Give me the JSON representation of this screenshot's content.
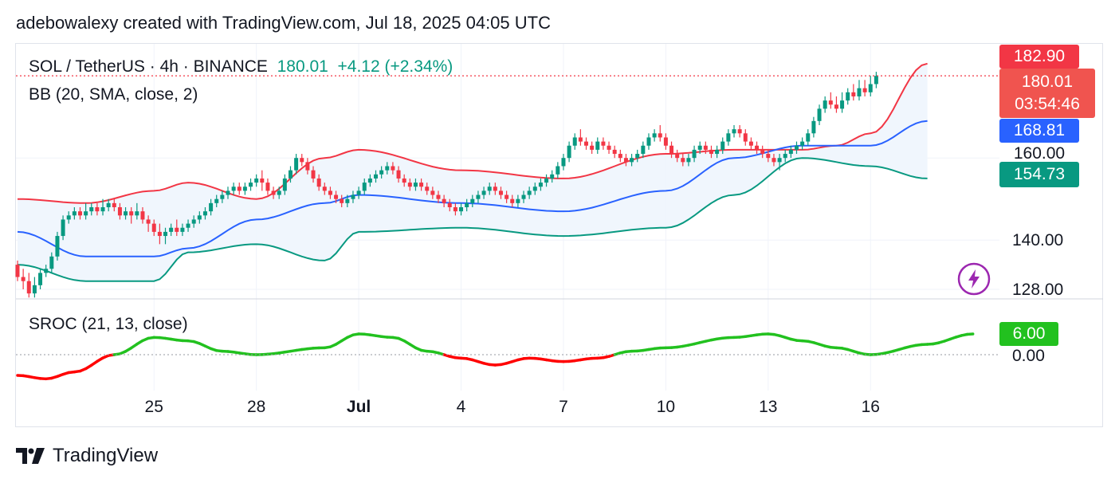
{
  "caption": "adebowalexy created with TradingView.com, Jul 18, 2025 04:05 UTC",
  "legend": {
    "symbol": "SOL / TetherUS · 4h · BINANCE",
    "last": "180.01",
    "change": "+4.12 (+2.34%)",
    "bb": "BB (20, SMA, close, 2)",
    "sroc": "SROC (21, 13, close)"
  },
  "price_tags": {
    "upper": "182.90",
    "last": "180.01",
    "countdown": "03:54:46",
    "basis": "168.81",
    "level": "160.00",
    "lower": "154.73",
    "sroc": "6.00"
  },
  "footer_brand": "TradingView",
  "icon": "lightning-icon",
  "colors": {
    "up": "#089981",
    "down": "#f23645",
    "basis": "#2962ff",
    "upper": "#f23645",
    "lower": "#089981",
    "band_fill": "#eef5fd",
    "sroc_pos": "#22c11f",
    "sroc_neg": "#ff0000"
  },
  "chart_data": {
    "type": "candlestick",
    "price_axis": {
      "ticks": [
        128,
        140,
        160
      ],
      "range": [
        126,
        184
      ]
    },
    "sroc_axis": {
      "ticks": [
        0
      ],
      "range": [
        -8,
        14
      ]
    },
    "x_labels": [
      "25",
      "28",
      "Jul",
      "4",
      "7",
      "10",
      "13",
      "16"
    ],
    "x_label_index": [
      24,
      42,
      60,
      78,
      96,
      114,
      132,
      150
    ],
    "basis": [
      [
        0,
        142
      ],
      [
        12,
        136
      ],
      [
        24,
        136
      ],
      [
        30,
        138
      ],
      [
        42,
        145
      ],
      [
        54,
        149
      ],
      [
        60,
        151
      ],
      [
        78,
        149
      ],
      [
        96,
        147
      ],
      [
        114,
        152
      ],
      [
        126,
        160
      ],
      [
        138,
        163
      ],
      [
        150,
        163
      ],
      [
        160,
        169
      ]
    ],
    "upper": [
      [
        0,
        150
      ],
      [
        12,
        149
      ],
      [
        24,
        152
      ],
      [
        30,
        154
      ],
      [
        42,
        150
      ],
      [
        54,
        160
      ],
      [
        60,
        162
      ],
      [
        78,
        157
      ],
      [
        96,
        155
      ],
      [
        114,
        161
      ],
      [
        126,
        162
      ],
      [
        138,
        162
      ],
      [
        144,
        163
      ],
      [
        150,
        166
      ],
      [
        160,
        183
      ]
    ],
    "lower": [
      [
        0,
        134
      ],
      [
        12,
        130
      ],
      [
        24,
        130
      ],
      [
        30,
        137
      ],
      [
        42,
        139
      ],
      [
        54,
        135
      ],
      [
        60,
        142
      ],
      [
        78,
        143
      ],
      [
        96,
        141
      ],
      [
        114,
        143
      ],
      [
        126,
        151
      ],
      [
        138,
        160
      ],
      [
        150,
        158
      ],
      [
        160,
        155
      ]
    ],
    "sroc": [
      [
        0,
        -6
      ],
      [
        5,
        -7
      ],
      [
        10,
        -5
      ],
      [
        17,
        0
      ],
      [
        24,
        5
      ],
      [
        30,
        4
      ],
      [
        36,
        1
      ],
      [
        42,
        0
      ],
      [
        54,
        2
      ],
      [
        60,
        6
      ],
      [
        66,
        5
      ],
      [
        72,
        1
      ],
      [
        78,
        -1
      ],
      [
        84,
        -3
      ],
      [
        90,
        -1
      ],
      [
        96,
        -2
      ],
      [
        102,
        -1
      ],
      [
        108,
        1
      ],
      [
        114,
        2
      ],
      [
        126,
        5
      ],
      [
        132,
        6
      ],
      [
        138,
        4
      ],
      [
        144,
        2
      ],
      [
        150,
        0
      ],
      [
        160,
        3
      ],
      [
        168,
        6
      ]
    ],
    "candles": [
      [
        134,
        131,
        135,
        130
      ],
      [
        131,
        130,
        133,
        128
      ],
      [
        130,
        127,
        132,
        126
      ],
      [
        127,
        129,
        131,
        126
      ],
      [
        129,
        132,
        133,
        128
      ],
      [
        132,
        133,
        134,
        131
      ],
      [
        133,
        136,
        137,
        132
      ],
      [
        136,
        141,
        142,
        135
      ],
      [
        141,
        145,
        146,
        140
      ],
      [
        145,
        146,
        147,
        144
      ],
      [
        146,
        147,
        148,
        145
      ],
      [
        147,
        146,
        148,
        145
      ],
      [
        146,
        147,
        149,
        145
      ],
      [
        147,
        148,
        149,
        146
      ],
      [
        148,
        147,
        149,
        146
      ],
      [
        147,
        148,
        150,
        146
      ],
      [
        148,
        149,
        150,
        147
      ],
      [
        149,
        148,
        150,
        147
      ],
      [
        148,
        146,
        149,
        145
      ],
      [
        146,
        147,
        148,
        145
      ],
      [
        147,
        146,
        148,
        144
      ],
      [
        146,
        147,
        149,
        145
      ],
      [
        147,
        145,
        148,
        144
      ],
      [
        145,
        144,
        146,
        142
      ],
      [
        144,
        142,
        145,
        141
      ],
      [
        142,
        141,
        144,
        139
      ],
      [
        141,
        142,
        143,
        139
      ],
      [
        142,
        143,
        144,
        141
      ],
      [
        143,
        142,
        145,
        141
      ],
      [
        142,
        143,
        144,
        141
      ],
      [
        143,
        144,
        145,
        142
      ],
      [
        144,
        145,
        146,
        143
      ],
      [
        145,
        146,
        147,
        144
      ],
      [
        146,
        147,
        148,
        145
      ],
      [
        147,
        149,
        150,
        146
      ],
      [
        149,
        150,
        151,
        148
      ],
      [
        150,
        151,
        152,
        149
      ],
      [
        151,
        152,
        153,
        150
      ],
      [
        152,
        153,
        154,
        151
      ],
      [
        153,
        152,
        154,
        151
      ],
      [
        152,
        153,
        154,
        151
      ],
      [
        153,
        154,
        155,
        152
      ],
      [
        154,
        155,
        156,
        153
      ],
      [
        155,
        154,
        157,
        152
      ],
      [
        154,
        152,
        155,
        151
      ],
      [
        152,
        151,
        153,
        150
      ],
      [
        151,
        152,
        153,
        150
      ],
      [
        152,
        155,
        156,
        151
      ],
      [
        155,
        157,
        158,
        154
      ],
      [
        157,
        160,
        161,
        156
      ],
      [
        160,
        159,
        161,
        158
      ],
      [
        159,
        157,
        160,
        156
      ],
      [
        157,
        155,
        158,
        154
      ],
      [
        155,
        153,
        156,
        152
      ],
      [
        153,
        152,
        154,
        151
      ],
      [
        152,
        151,
        153,
        150
      ],
      [
        151,
        150,
        152,
        149
      ],
      [
        150,
        149,
        151,
        148
      ],
      [
        149,
        150,
        151,
        148
      ],
      [
        150,
        151,
        152,
        149
      ],
      [
        151,
        152,
        153,
        150
      ],
      [
        152,
        154,
        155,
        151
      ],
      [
        154,
        155,
        156,
        153
      ],
      [
        155,
        156,
        157,
        154
      ],
      [
        156,
        157,
        158,
        155
      ],
      [
        157,
        158,
        159,
        156
      ],
      [
        158,
        157,
        159,
        156
      ],
      [
        157,
        155,
        158,
        154
      ],
      [
        155,
        154,
        156,
        153
      ],
      [
        154,
        153,
        155,
        152
      ],
      [
        153,
        154,
        155,
        152
      ],
      [
        154,
        153,
        155,
        152
      ],
      [
        153,
        152,
        154,
        151
      ],
      [
        152,
        151,
        153,
        150
      ],
      [
        151,
        150,
        152,
        149
      ],
      [
        150,
        149,
        151,
        148
      ],
      [
        149,
        148,
        150,
        147
      ],
      [
        148,
        147,
        149,
        146
      ],
      [
        147,
        148,
        149,
        146
      ],
      [
        148,
        149,
        150,
        147
      ],
      [
        149,
        150,
        151,
        148
      ],
      [
        150,
        151,
        152,
        149
      ],
      [
        151,
        152,
        153,
        150
      ],
      [
        152,
        153,
        154,
        151
      ],
      [
        153,
        152,
        154,
        151
      ],
      [
        152,
        151,
        153,
        150
      ],
      [
        151,
        150,
        152,
        149
      ],
      [
        150,
        149,
        151,
        148
      ],
      [
        149,
        150,
        151,
        148
      ],
      [
        150,
        151,
        152,
        149
      ],
      [
        151,
        152,
        153,
        150
      ],
      [
        152,
        153,
        154,
        151
      ],
      [
        153,
        154,
        155,
        152
      ],
      [
        154,
        155,
        156,
        153
      ],
      [
        155,
        156,
        157,
        154
      ],
      [
        156,
        158,
        159,
        155
      ],
      [
        158,
        160,
        161,
        157
      ],
      [
        160,
        163,
        164,
        159
      ],
      [
        163,
        165,
        166,
        162
      ],
      [
        165,
        164,
        167,
        163
      ],
      [
        164,
        163,
        165,
        162
      ],
      [
        163,
        162,
        164,
        161
      ],
      [
        162,
        164,
        165,
        161
      ],
      [
        164,
        163,
        165,
        162
      ],
      [
        163,
        162,
        164,
        161
      ],
      [
        162,
        161,
        163,
        160
      ],
      [
        161,
        160,
        162,
        159
      ],
      [
        160,
        159,
        161,
        158
      ],
      [
        159,
        160,
        161,
        158
      ],
      [
        160,
        161,
        162,
        159
      ],
      [
        161,
        163,
        164,
        160
      ],
      [
        163,
        165,
        166,
        162
      ],
      [
        165,
        166,
        167,
        164
      ],
      [
        166,
        165,
        168,
        164
      ],
      [
        165,
        163,
        166,
        162
      ],
      [
        163,
        161,
        164,
        160
      ],
      [
        161,
        160,
        162,
        159
      ],
      [
        160,
        159,
        161,
        158
      ],
      [
        159,
        160,
        161,
        158
      ],
      [
        160,
        162,
        163,
        159
      ],
      [
        162,
        163,
        164,
        161
      ],
      [
        163,
        162,
        164,
        161
      ],
      [
        162,
        161,
        163,
        160
      ],
      [
        161,
        162,
        163,
        160
      ],
      [
        162,
        164,
        165,
        161
      ],
      [
        164,
        166,
        167,
        163
      ],
      [
        166,
        167,
        168,
        165
      ],
      [
        167,
        166,
        168,
        165
      ],
      [
        166,
        164,
        167,
        163
      ],
      [
        164,
        163,
        165,
        162
      ],
      [
        163,
        162,
        164,
        161
      ],
      [
        162,
        161,
        163,
        160
      ],
      [
        161,
        160,
        162,
        159
      ],
      [
        160,
        159,
        161,
        158
      ],
      [
        159,
        160,
        161,
        157
      ],
      [
        160,
        161,
        162,
        159
      ],
      [
        161,
        162,
        163,
        160
      ],
      [
        162,
        163,
        164,
        161
      ],
      [
        163,
        164,
        165,
        162
      ],
      [
        164,
        166,
        167,
        163
      ],
      [
        166,
        169,
        170,
        165
      ],
      [
        169,
        172,
        173,
        168
      ],
      [
        172,
        174,
        175,
        171
      ],
      [
        174,
        173,
        176,
        172
      ],
      [
        173,
        172,
        175,
        171
      ],
      [
        172,
        174,
        176,
        171
      ],
      [
        174,
        176,
        177,
        173
      ],
      [
        176,
        175,
        178,
        174
      ],
      [
        175,
        177,
        179,
        174
      ],
      [
        177,
        176,
        179,
        175
      ],
      [
        176,
        178,
        180,
        175
      ],
      [
        178,
        180,
        181,
        177
      ]
    ]
  }
}
